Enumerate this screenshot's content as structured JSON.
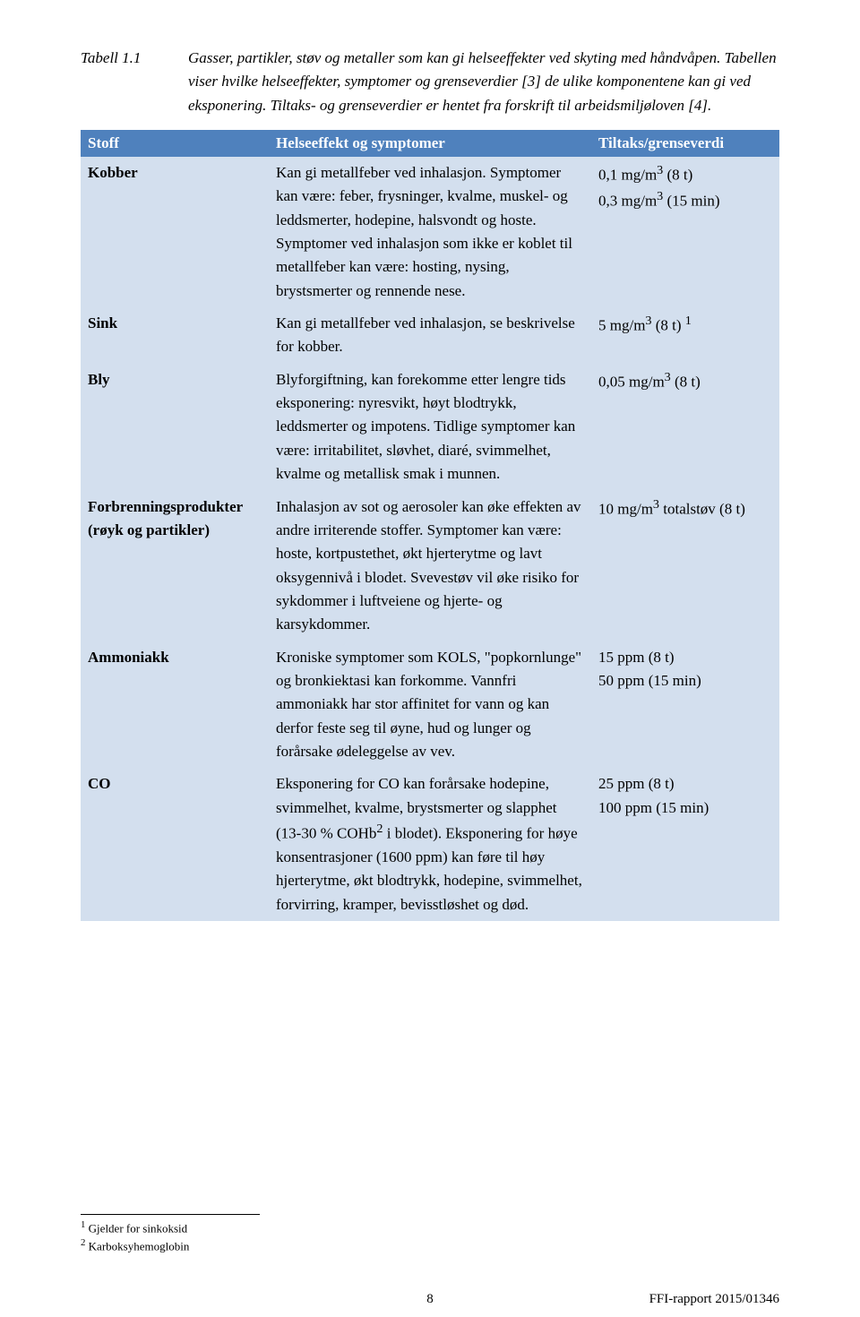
{
  "caption": {
    "label": "Tabell 1.1",
    "text": "Gasser, partikler, støv og metaller som kan gi helseeffekter ved skyting med håndvåpen. Tabellen viser hvilke helseeffekter, symptomer og grenseverdier [3] de ulike komponentene kan gi ved eksponering. Tiltaks- og grenseverdier er hentet fra forskrift til arbeidsmiljøloven [4]."
  },
  "headers": {
    "col1": "Stoff",
    "col2": "Helseeffekt og symptomer",
    "col3": "Tiltaks/grenseverdi"
  },
  "rows": [
    {
      "name": "kobber",
      "stoff": "Kobber",
      "effect": "Kan gi metallfeber ved inhalasjon. Symptomer kan være: feber, frysninger, kvalme, muskel- og leddsmerter, hodepine, halsvondt og hoste. Symptomer ved inhalasjon som ikke er koblet til metallfeber kan være: hosting, nysing, brystsmerter og rennende nese.",
      "limit_html": "0,1 mg/m<sup>3</sup> (8 t)<br>0,3 mg/m<sup>3</sup> (15 min)"
    },
    {
      "name": "sink",
      "stoff": "Sink",
      "effect": "Kan gi metallfeber ved inhalasjon, se beskrivelse for kobber.",
      "limit_html": "5 mg/m<sup>3</sup> (8 t) <sup>1</sup>"
    },
    {
      "name": "bly",
      "stoff": "Bly",
      "effect": "Blyforgiftning, kan forekomme etter lengre tids eksponering: nyresvikt, høyt blodtrykk, leddsmerter og impotens. Tidlige symptomer kan være: irritabilitet, sløvhet, diaré, svimmelhet, kvalme og metallisk smak i munnen.",
      "limit_html": "0,05 mg/m<sup>3</sup> (8 t)"
    },
    {
      "name": "forbrenningsprodukter",
      "stoff": "Forbrenningsprodukter (røyk og partikler)",
      "effect": "Inhalasjon av sot og aerosoler kan øke effekten av andre irriterende stoffer. Symptomer kan være: hoste, kortpustethet, økt hjerterytme og lavt oksygennivå i blodet. Svevestøv vil øke risiko for sykdommer i luftveiene og hjerte- og karsykdommer.",
      "limit_html": "10 mg/m<sup>3</sup> totalstøv (8 t)"
    },
    {
      "name": "ammoniakk",
      "stoff": "Ammoniakk",
      "effect": "Kroniske symptomer som KOLS, \"popkornlunge\" og bronkiektasi kan forkomme. Vannfri ammoniakk har stor affinitet for vann og kan derfor feste seg til øyne, hud og lunger og forårsake ødeleggelse av vev.",
      "limit_html": "15 ppm (8 t)<br>50 ppm (15 min)"
    },
    {
      "name": "co",
      "stoff": "CO",
      "effect_html": "Eksponering for CO kan forårsake hodepine, svimmelhet, kvalme, brystsmerter og slapphet (13-30 % COHb<sup>2</sup> i blodet). Eksponering for høye konsentrasjoner (1600 ppm) kan føre til høy hjerterytme, økt blodtrykk, hodepine, svimmelhet, forvirring, kramper, bevisstløshet og død.",
      "limit_html": "25 ppm (8 t)<br>100 ppm (15 min)"
    }
  ],
  "footnotes": [
    {
      "num": "1",
      "text": "Gjelder for sinkoksid"
    },
    {
      "num": "2",
      "text": "Karboksyhemoglobin"
    }
  ],
  "footer": {
    "page": "8",
    "report": "FFI-rapport 2015/01346"
  },
  "colors": {
    "header_bg": "#4f81bd",
    "header_fg": "#ffffff",
    "cell_bg": "#d3dfee",
    "text": "#000000"
  }
}
